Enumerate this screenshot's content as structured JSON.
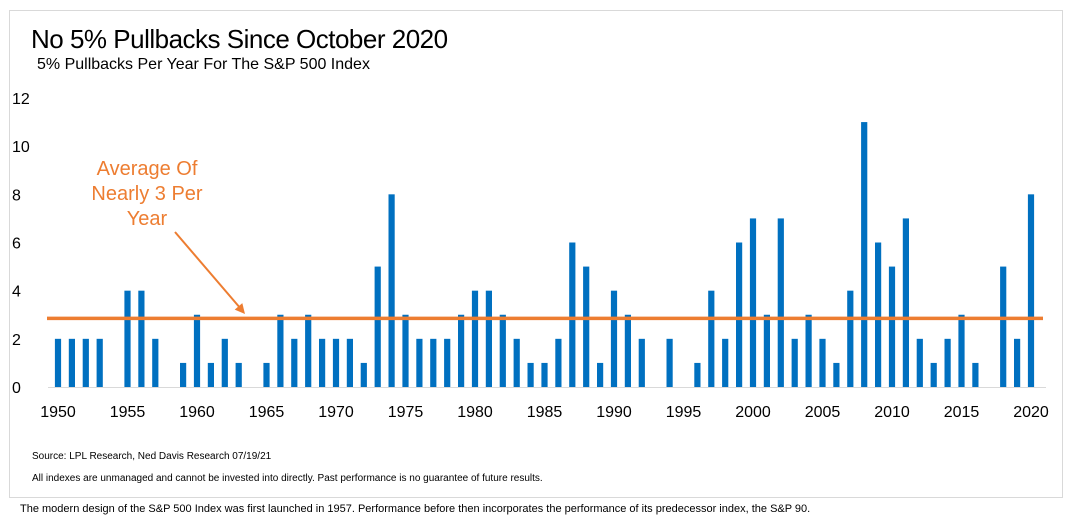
{
  "chart_data": {
    "type": "bar",
    "title": "No 5% Pullbacks Since October 2020",
    "subtitle": "5% Pullbacks Per Year For The S&P 500 Index",
    "x": [
      1950,
      1951,
      1952,
      1953,
      1954,
      1955,
      1956,
      1957,
      1958,
      1959,
      1960,
      1961,
      1962,
      1963,
      1964,
      1965,
      1966,
      1967,
      1968,
      1969,
      1970,
      1971,
      1972,
      1973,
      1974,
      1975,
      1976,
      1977,
      1978,
      1979,
      1980,
      1981,
      1982,
      1983,
      1984,
      1985,
      1986,
      1987,
      1988,
      1989,
      1990,
      1991,
      1992,
      1993,
      1994,
      1995,
      1996,
      1997,
      1998,
      1999,
      2000,
      2001,
      2002,
      2003,
      2004,
      2005,
      2006,
      2007,
      2008,
      2009,
      2010,
      2011,
      2012,
      2013,
      2014,
      2015,
      2016,
      2017,
      2018,
      2019,
      2020
    ],
    "values": [
      2,
      2,
      2,
      2,
      0,
      4,
      4,
      2,
      0,
      1,
      3,
      1,
      2,
      1,
      0,
      1,
      3,
      2,
      3,
      2,
      2,
      2,
      1,
      5,
      8,
      3,
      2,
      2,
      2,
      3,
      4,
      4,
      3,
      2,
      1,
      1,
      2,
      6,
      5,
      1,
      4,
      3,
      2,
      0,
      2,
      0,
      1,
      4,
      2,
      6,
      7,
      3,
      7,
      2,
      3,
      2,
      1,
      4,
      11,
      6,
      5,
      7,
      2,
      1,
      2,
      3,
      1,
      0,
      5,
      2,
      8
    ],
    "bar_color": "#0070C0",
    "average": 2.85,
    "average_color": "#ED7D31",
    "ylim": [
      0,
      12
    ],
    "yticks": [
      0,
      2,
      4,
      6,
      8,
      10,
      12
    ],
    "xticks": [
      1950,
      1955,
      1960,
      1965,
      1970,
      1975,
      1980,
      1985,
      1990,
      1995,
      2000,
      2005,
      2010,
      2015,
      2020
    ],
    "xlim": [
      1950,
      2020
    ],
    "annotation": {
      "lines": [
        "Average Of",
        "Nearly 3 Per",
        "Year"
      ]
    },
    "grid": false,
    "legend": "none"
  },
  "source": "Source: LPL Research, Ned Davis Research 07/19/21",
  "disclaimer": "All indexes are unmanaged and cannot be invested into directly. Past performance is no guarantee of future results.",
  "footnote": "The modern design of the S&P 500 Index was first launched in 1957. Performance before then incorporates the performance of its  predecessor index, the S&P 90."
}
